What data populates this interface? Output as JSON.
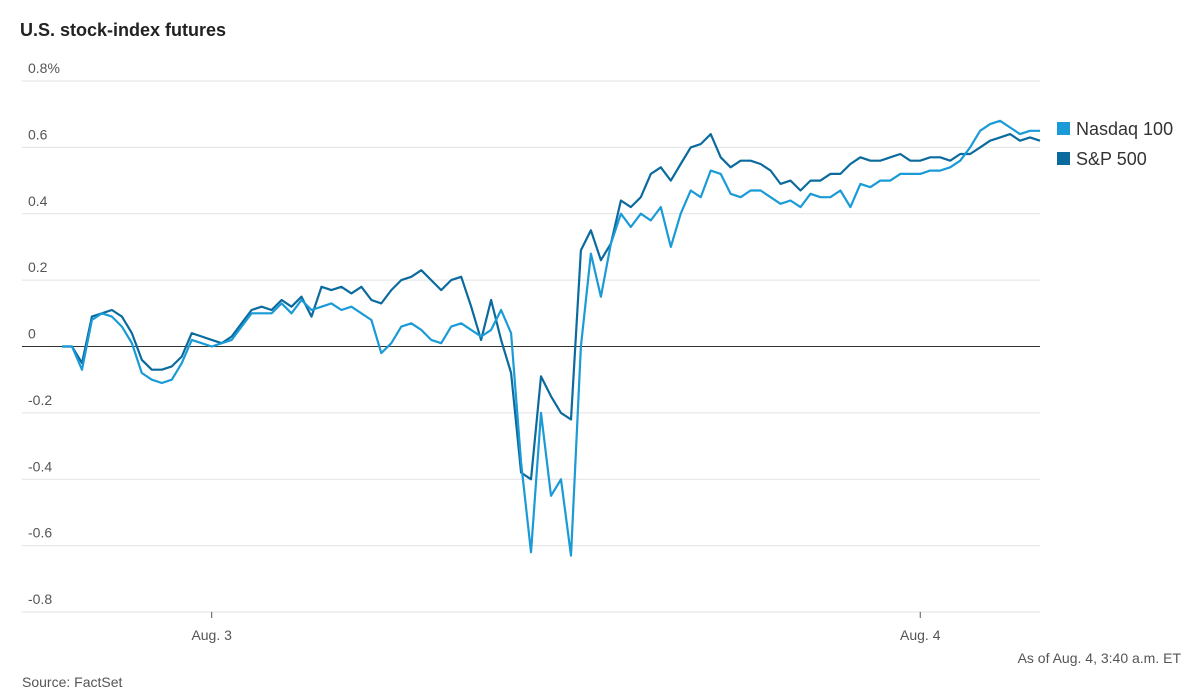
{
  "chart_data": {
    "type": "line",
    "title": "U.S. stock-index futures",
    "source": "Source: FactSet",
    "note": "As of Aug. 4, 3:40 a.m. ET",
    "categories": [
      null,
      null,
      null,
      null,
      null,
      null,
      null,
      null,
      null,
      null,
      null,
      null,
      null,
      null,
      null,
      "Aug. 3",
      null,
      null,
      null,
      null,
      null,
      null,
      null,
      null,
      null,
      null,
      null,
      null,
      null,
      null,
      null,
      null,
      null,
      null,
      null,
      null,
      null,
      null,
      null,
      null,
      null,
      null,
      null,
      null,
      null,
      null,
      null,
      null,
      null,
      null,
      null,
      null,
      null,
      null,
      null,
      null,
      null,
      null,
      null,
      null,
      null,
      null,
      null,
      null,
      null,
      null,
      null,
      null,
      null,
      null,
      null,
      null,
      null,
      null,
      null,
      null,
      null,
      null,
      null,
      null,
      null,
      null,
      null,
      null,
      null,
      null,
      "Aug. 4",
      null,
      null,
      null,
      null,
      null,
      null,
      null,
      null,
      null,
      null,
      null,
      null
    ],
    "series": [
      {
        "name": "Nasdaq 100",
        "color": "#1a9ad6",
        "values": [
          0,
          0,
          -0.07,
          0.08,
          0.1,
          0.09,
          0.06,
          0.01,
          -0.08,
          -0.1,
          -0.11,
          -0.1,
          -0.05,
          0.02,
          0.01,
          0,
          0.01,
          0.02,
          0.06,
          0.1,
          0.1,
          0.1,
          0.13,
          0.1,
          0.14,
          0.11,
          0.12,
          0.13,
          0.11,
          0.12,
          0.1,
          0.08,
          -0.02,
          0.01,
          0.06,
          0.07,
          0.05,
          0.02,
          0.01,
          0.06,
          0.07,
          0.05,
          0.03,
          0.05,
          0.11,
          0.04,
          -0.35,
          -0.62,
          -0.2,
          -0.45,
          -0.4,
          -0.63,
          0,
          0.28,
          0.15,
          0.31,
          0.4,
          0.36,
          0.4,
          0.38,
          0.42,
          0.3,
          0.4,
          0.47,
          0.45,
          0.53,
          0.52,
          0.46,
          0.45,
          0.47,
          0.47,
          0.45,
          0.43,
          0.44,
          0.42,
          0.46,
          0.45,
          0.45,
          0.47,
          0.42,
          0.49,
          0.48,
          0.5,
          0.5,
          0.52,
          0.52,
          0.52,
          0.53,
          0.53,
          0.54,
          0.56,
          0.6,
          0.65,
          0.67,
          0.68,
          0.66,
          0.64,
          0.65,
          0.65
        ]
      },
      {
        "name": "S&P 500",
        "color": "#0b6b9e",
        "values": [
          0,
          0,
          -0.05,
          0.09,
          0.1,
          0.11,
          0.09,
          0.04,
          -0.04,
          -0.07,
          -0.07,
          -0.06,
          -0.03,
          0.04,
          0.03,
          0.02,
          0.01,
          0.03,
          0.07,
          0.11,
          0.12,
          0.11,
          0.14,
          0.12,
          0.15,
          0.09,
          0.18,
          0.17,
          0.18,
          0.16,
          0.18,
          0.14,
          0.13,
          0.17,
          0.2,
          0.21,
          0.23,
          0.2,
          0.17,
          0.2,
          0.21,
          0.12,
          0.02,
          0.14,
          0.02,
          -0.08,
          -0.38,
          -0.4,
          -0.09,
          -0.15,
          -0.2,
          -0.22,
          0.29,
          0.35,
          0.26,
          0.31,
          0.44,
          0.42,
          0.45,
          0.52,
          0.54,
          0.5,
          0.55,
          0.6,
          0.61,
          0.64,
          0.57,
          0.54,
          0.56,
          0.56,
          0.55,
          0.53,
          0.49,
          0.5,
          0.47,
          0.5,
          0.5,
          0.52,
          0.52,
          0.55,
          0.57,
          0.56,
          0.56,
          0.57,
          0.58,
          0.56,
          0.56,
          0.57,
          0.57,
          0.56,
          0.58,
          0.58,
          0.6,
          0.62,
          0.63,
          0.64,
          0.62,
          0.63,
          0.62
        ]
      }
    ],
    "ylim": [
      -0.8,
      0.8
    ],
    "yticks": [
      {
        "value": 0.8,
        "label": "0.8%"
      },
      0.6,
      0.4,
      0.2,
      0,
      -0.2,
      -0.4,
      -0.6,
      -0.8
    ],
    "grid": true
  }
}
